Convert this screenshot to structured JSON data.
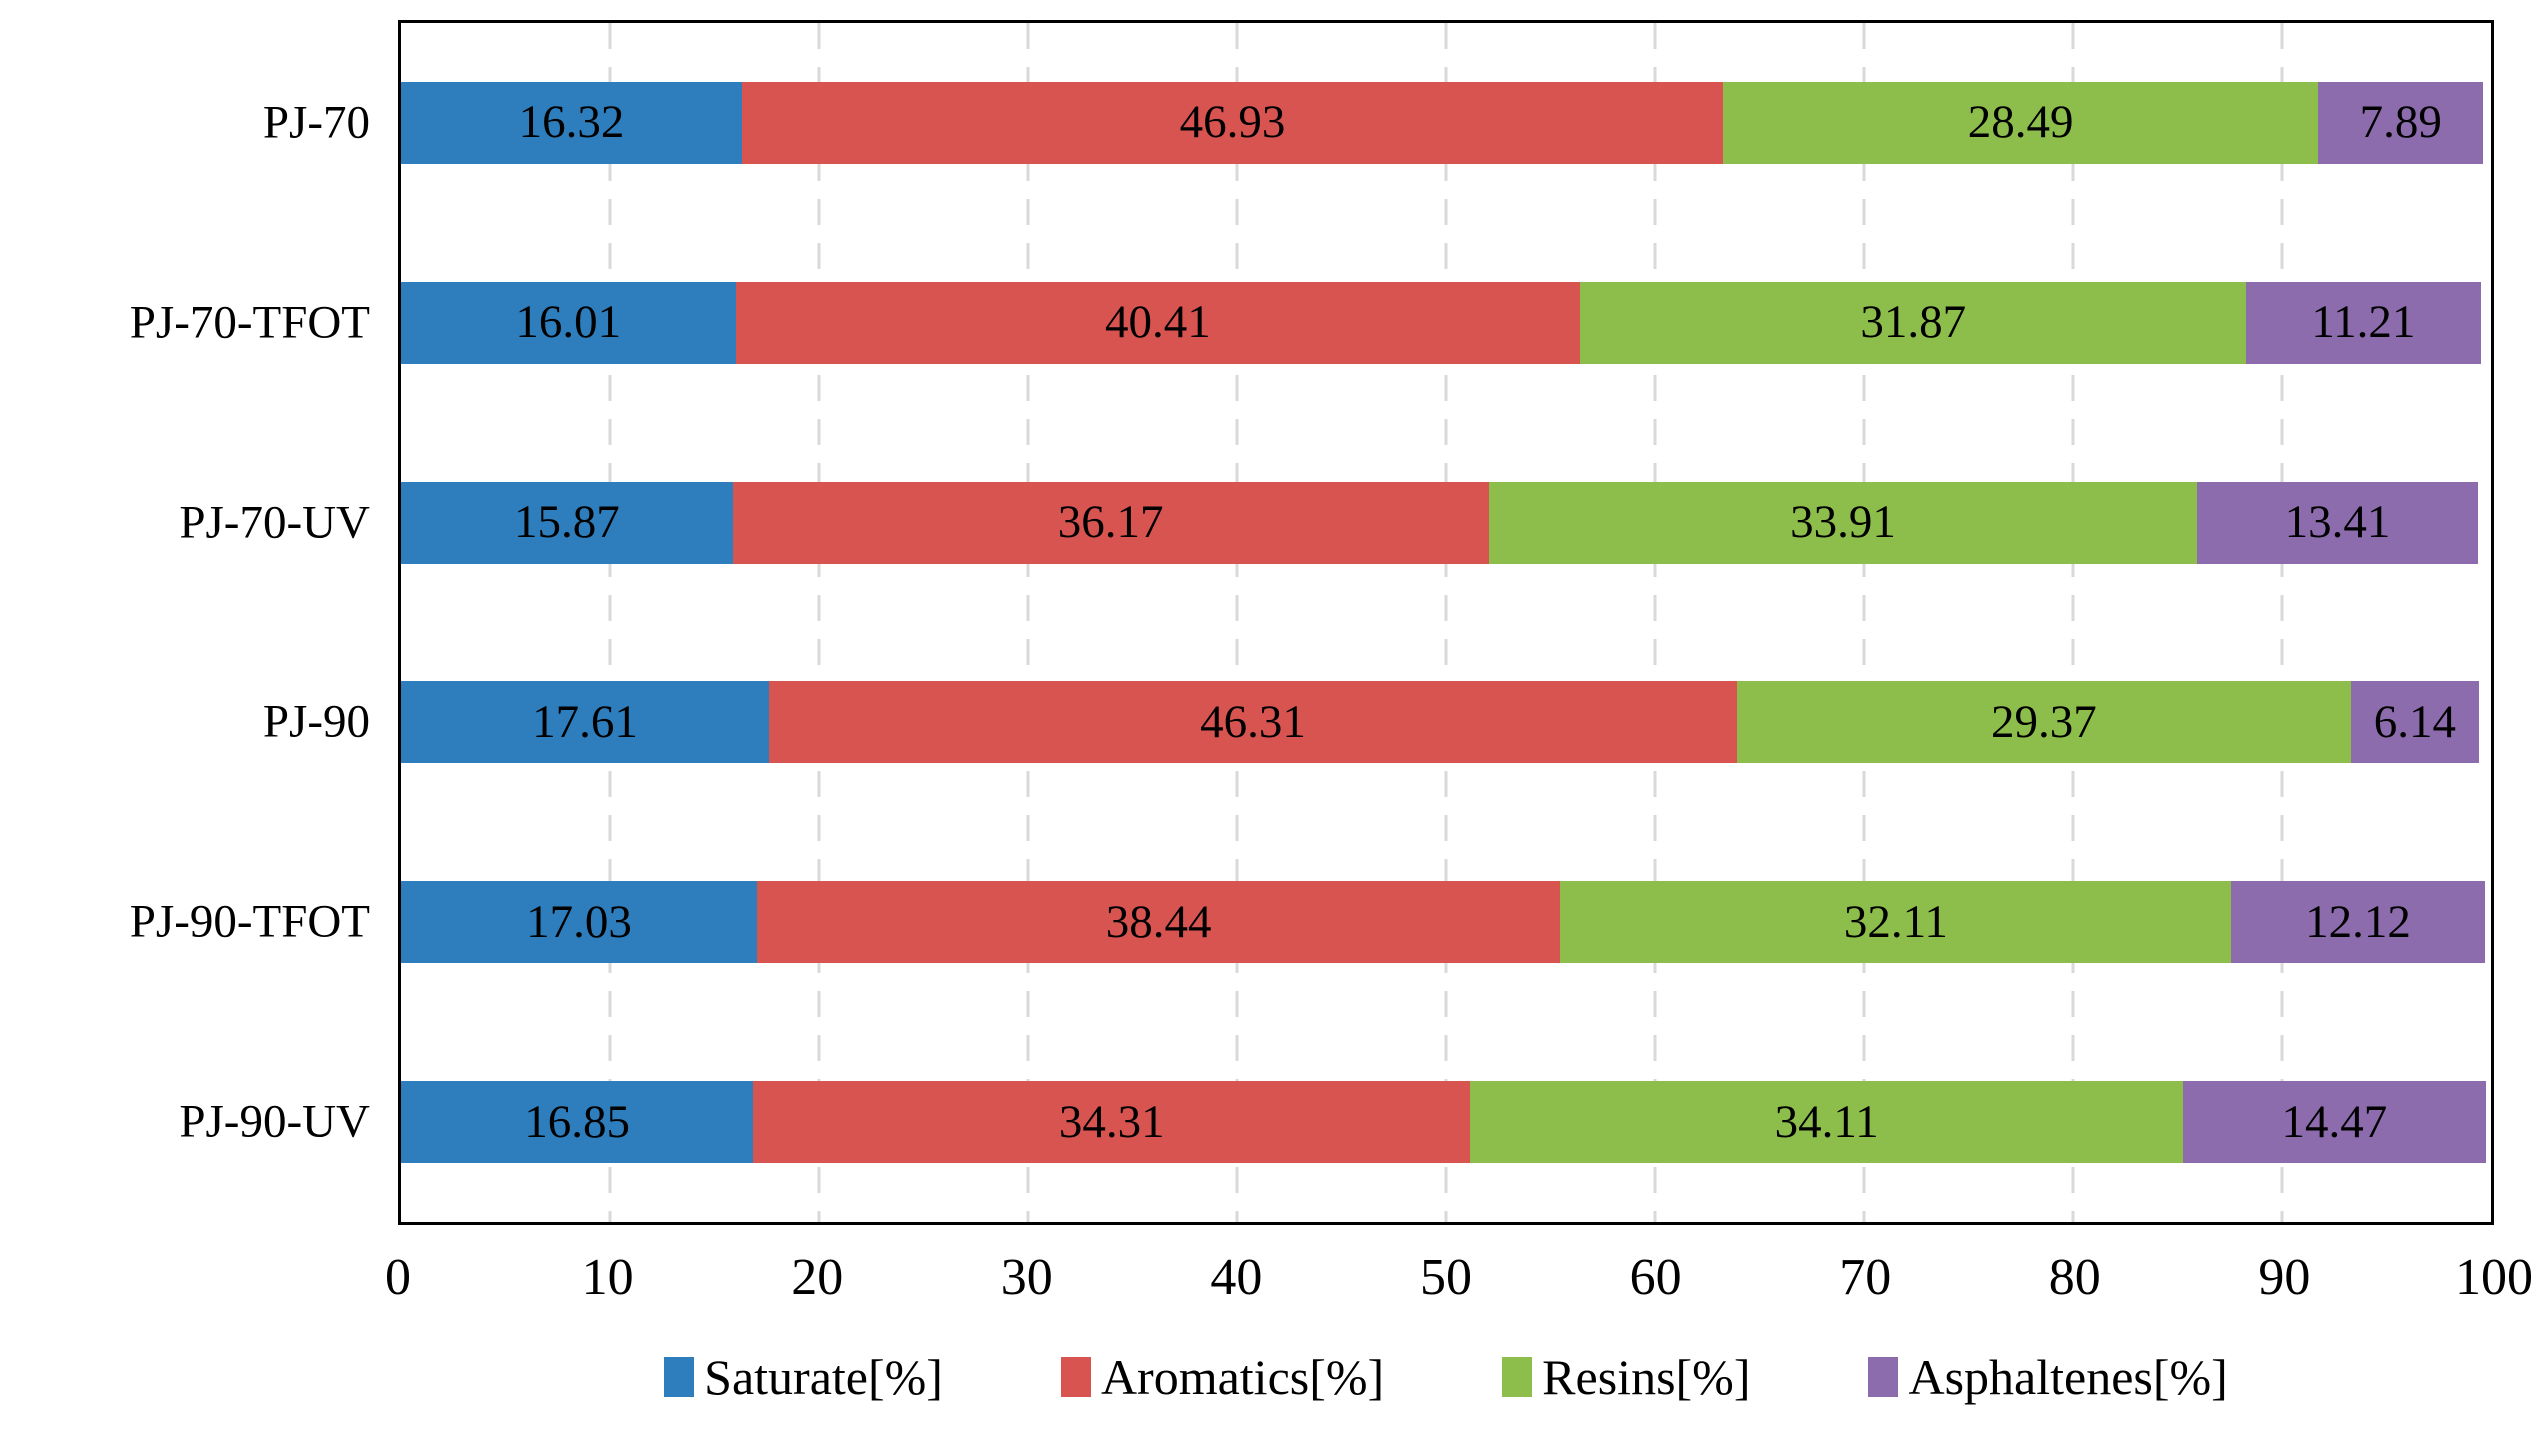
{
  "chart_data": {
    "type": "bar",
    "orientation": "horizontal",
    "stacked": true,
    "title": "",
    "xlabel": "",
    "ylabel": "",
    "xlim": [
      0,
      100
    ],
    "x_ticks": [
      0,
      10,
      20,
      30,
      40,
      50,
      60,
      70,
      80,
      90,
      100
    ],
    "grid": "vertical-dashed",
    "legend_position": "bottom",
    "categories": [
      "PJ-70",
      "PJ-70-TFOT",
      "PJ-70-UV",
      "PJ-90",
      "PJ-90-TFOT",
      "PJ-90-UV"
    ],
    "series": [
      {
        "name": "Saturate[%]",
        "color": "#2E7EBD",
        "values": [
          16.32,
          16.01,
          15.87,
          17.61,
          17.03,
          16.85
        ]
      },
      {
        "name": "Aromatics[%]",
        "color": "#D85450",
        "values": [
          46.93,
          40.41,
          36.17,
          46.31,
          38.44,
          34.31
        ]
      },
      {
        "name": "Resins[%]",
        "color": "#8DBE4C",
        "values": [
          28.49,
          31.87,
          33.91,
          29.37,
          32.11,
          34.11
        ]
      },
      {
        "name": "Asphaltenes[%]",
        "color": "#8D6CAE",
        "values": [
          7.89,
          11.21,
          13.41,
          6.14,
          12.12,
          14.47
        ]
      }
    ]
  },
  "colors": {
    "grid": "#D9D9D9",
    "border": "#000000",
    "text": "#000000",
    "background": "#FFFFFF"
  }
}
